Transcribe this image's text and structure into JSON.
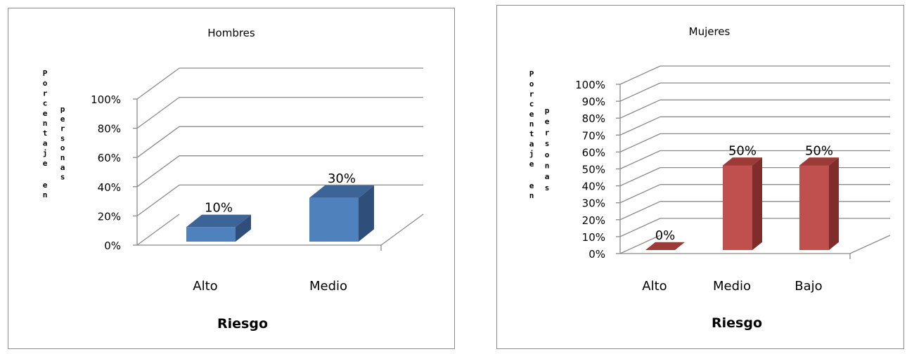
{
  "chart_data": [
    {
      "type": "bar",
      "title": "Hombres",
      "xlabel": "Riesgo",
      "ylabel": "Porcentaje en personas",
      "categories": [
        "Alto",
        "Medio"
      ],
      "values": [
        10,
        30
      ],
      "data_labels": [
        "10%",
        "30%"
      ],
      "ylim": [
        0,
        100
      ],
      "yticks": [
        "0%",
        "20%",
        "40%",
        "60%",
        "80%",
        "100%"
      ],
      "ytick_values": [
        0,
        20,
        40,
        60,
        80,
        100
      ],
      "grid": true,
      "three_d": true,
      "colors": {
        "front": "#4f81bd",
        "top": "#3c6496",
        "side": "#2f4f7a"
      }
    },
    {
      "type": "bar",
      "title": "Mujeres",
      "xlabel": "Riesgo",
      "ylabel": "Porcentaje en personas",
      "categories": [
        "Alto",
        "Medio",
        "Bajo"
      ],
      "values": [
        0,
        50,
        50
      ],
      "data_labels": [
        "0%",
        "50%",
        "50%"
      ],
      "ylim": [
        0,
        100
      ],
      "yticks": [
        "0%",
        "10%",
        "20%",
        "30%",
        "40%",
        "50%",
        "60%",
        "70%",
        "80%",
        "90%",
        "100%"
      ],
      "ytick_values": [
        0,
        10,
        20,
        30,
        40,
        50,
        60,
        70,
        80,
        90,
        100
      ],
      "grid": true,
      "three_d": true,
      "colors": {
        "front": "#c0504d",
        "top": "#9b3a37",
        "side": "#7e2d2b"
      }
    }
  ]
}
